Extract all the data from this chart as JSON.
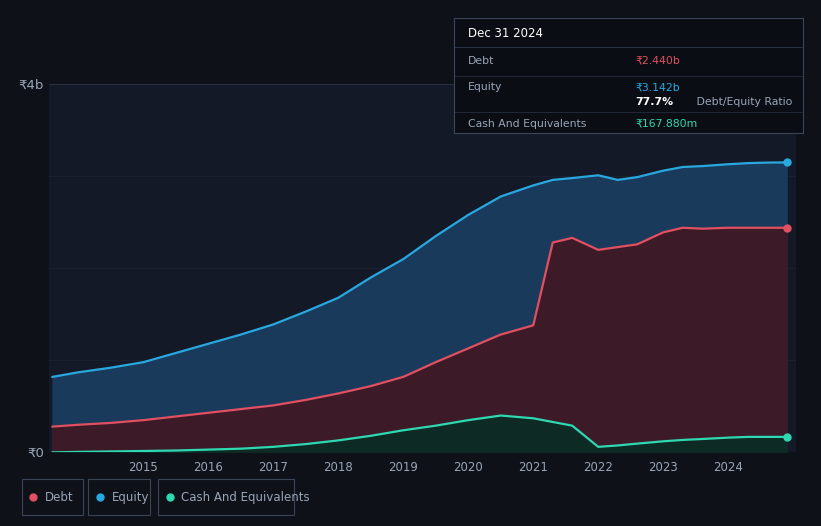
{
  "background_color": "#0e1118",
  "plot_bg_color": "#131926",
  "grid_color": "#2a3347",
  "text_color": "#9aa5b8",
  "title_color": "#ffffff",
  "equity_color": "#29a8e0",
  "debt_color": "#e05060",
  "cash_color": "#2ed8b0",
  "equity_fill_color": "#1a3a5c",
  "debt_fill_color": "#3d1a28",
  "cash_fill_color": "#0d2a24",
  "ylim": [
    0,
    4000000000
  ],
  "y_ticks": [
    0,
    4000000000
  ],
  "y_tick_labels": [
    "₹0",
    "₹4b"
  ],
  "years": [
    2013.6,
    2014.0,
    2014.5,
    2015.0,
    2015.5,
    2016.0,
    2016.5,
    2017.0,
    2017.5,
    2018.0,
    2018.5,
    2019.0,
    2019.5,
    2020.0,
    2020.5,
    2021.0,
    2021.3,
    2021.6,
    2022.0,
    2022.3,
    2022.6,
    2023.0,
    2023.3,
    2023.6,
    2024.0,
    2024.3,
    2024.6,
    2024.9
  ],
  "equity": [
    820000000,
    870000000,
    920000000,
    980000000,
    1080000000,
    1180000000,
    1280000000,
    1390000000,
    1530000000,
    1680000000,
    1900000000,
    2100000000,
    2350000000,
    2580000000,
    2780000000,
    2900000000,
    2960000000,
    2980000000,
    3010000000,
    2960000000,
    2990000000,
    3060000000,
    3100000000,
    3110000000,
    3130000000,
    3142000000,
    3148000000,
    3150000000
  ],
  "debt": [
    280000000,
    300000000,
    320000000,
    350000000,
    390000000,
    430000000,
    470000000,
    510000000,
    570000000,
    640000000,
    720000000,
    820000000,
    980000000,
    1130000000,
    1280000000,
    1380000000,
    2280000000,
    2330000000,
    2200000000,
    2230000000,
    2260000000,
    2390000000,
    2440000000,
    2430000000,
    2440000000,
    2440000000,
    2440000000,
    2440000000
  ],
  "cash": [
    0,
    5000000,
    10000000,
    15000000,
    20000000,
    30000000,
    40000000,
    60000000,
    90000000,
    130000000,
    180000000,
    240000000,
    290000000,
    350000000,
    400000000,
    370000000,
    330000000,
    290000000,
    60000000,
    75000000,
    95000000,
    120000000,
    135000000,
    145000000,
    160000000,
    167880000,
    168000000,
    168000000
  ],
  "x_tick_years": [
    2015,
    2016,
    2017,
    2018,
    2019,
    2020,
    2021,
    2022,
    2023,
    2024
  ],
  "tooltip_title": "Dec 31 2024",
  "tooltip_debt_label": "Debt",
  "tooltip_debt_value": "₹2.440b",
  "tooltip_equity_label": "Equity",
  "tooltip_equity_value": "₹3.142b",
  "tooltip_ratio_bold": "77.7%",
  "tooltip_ratio_rest": " Debt/Equity Ratio",
  "tooltip_cash_label": "Cash And Equivalents",
  "tooltip_cash_value": "₹167.880m",
  "legend_items": [
    {
      "label": "Debt",
      "color": "#e05060"
    },
    {
      "label": "Equity",
      "color": "#29a8e0"
    },
    {
      "label": "Cash And Equivalents",
      "color": "#2ed8b0"
    }
  ]
}
